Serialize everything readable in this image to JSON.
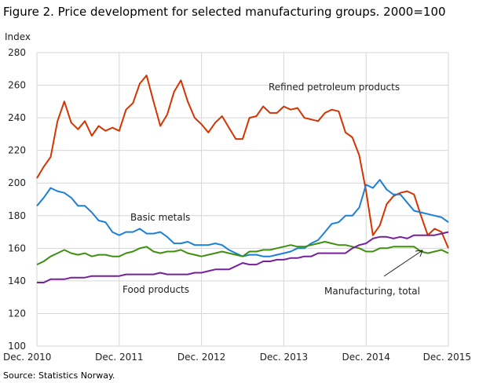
{
  "chart_data": {
    "type": "line",
    "title": "Figure 2. Price development for selected manufacturing groups. 2000=100",
    "ylabel": "Index",
    "ylim": [
      100,
      280
    ],
    "yticks": [
      100,
      120,
      140,
      160,
      180,
      200,
      220,
      240,
      260,
      280
    ],
    "xticks": [
      "Dec. 2010",
      "Dec. 2011",
      "Dec. 2012",
      "Dec. 2013",
      "Dec. 2014",
      "Dec. 2015"
    ],
    "x_range": [
      "Dec. 2010",
      "Dec. 2015"
    ],
    "frequency": "monthly",
    "grid": true,
    "source": "Source: Statistics Norway.",
    "series": [
      {
        "name": "Refined petroleum products",
        "color": "#d43500",
        "values": [
          203,
          210,
          216,
          238,
          250,
          237,
          233,
          238,
          229,
          235,
          232,
          234,
          232,
          245,
          249,
          261,
          266,
          250,
          235,
          242,
          256,
          263,
          250,
          240,
          236,
          231,
          237,
          241,
          234,
          227,
          227,
          240,
          241,
          247,
          243,
          243,
          247,
          245,
          246,
          240,
          239,
          238,
          243,
          245,
          244,
          231,
          228,
          217,
          195,
          168,
          174,
          187,
          192,
          194,
          195,
          193,
          180,
          168,
          172,
          170,
          160
        ]
      },
      {
        "name": "Basic metals",
        "color": "#1c7fd8",
        "values": [
          186,
          191,
          197,
          195,
          194,
          191,
          186,
          186,
          182,
          177,
          176,
          170,
          168,
          170,
          170,
          172,
          169,
          169,
          170,
          167,
          163,
          163,
          164,
          162,
          162,
          162,
          163,
          162,
          159,
          157,
          155,
          156,
          156,
          155,
          155,
          156,
          157,
          158,
          160,
          160,
          163,
          165,
          170,
          175,
          176,
          180,
          180,
          185,
          199,
          197,
          202,
          196,
          193,
          193,
          188,
          183,
          182,
          181,
          180,
          179,
          176
        ]
      },
      {
        "name": "Manufacturing, total",
        "color": "#3f8f10",
        "values": [
          150,
          152,
          155,
          157,
          159,
          157,
          156,
          157,
          155,
          156,
          156,
          155,
          155,
          157,
          158,
          160,
          161,
          158,
          157,
          158,
          158,
          159,
          157,
          156,
          155,
          156,
          157,
          158,
          157,
          156,
          155,
          158,
          158,
          159,
          159,
          160,
          161,
          162,
          161,
          161,
          162,
          163,
          164,
          163,
          162,
          162,
          161,
          160,
          158,
          158,
          160,
          160,
          161,
          161,
          161,
          161,
          158,
          157,
          158,
          159,
          157
        ]
      },
      {
        "name": "Food products",
        "color": "#76209c",
        "values": [
          139,
          139,
          141,
          141,
          141,
          142,
          142,
          142,
          143,
          143,
          143,
          143,
          143,
          144,
          144,
          144,
          144,
          144,
          145,
          144,
          144,
          144,
          144,
          145,
          145,
          146,
          147,
          147,
          147,
          149,
          151,
          150,
          150,
          152,
          152,
          153,
          153,
          154,
          154,
          155,
          155,
          157,
          157,
          157,
          157,
          157,
          160,
          162,
          163,
          166,
          167,
          167,
          166,
          167,
          166,
          168,
          168,
          168,
          168,
          169,
          170
        ]
      }
    ],
    "annotations": [
      "Refined petroleum products",
      "Basic metals",
      "Food products",
      "Manufacturing,  total"
    ]
  }
}
